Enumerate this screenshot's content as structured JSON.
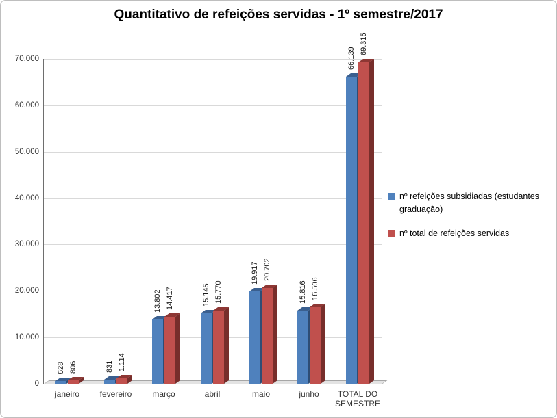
{
  "title": "Quantitativo de refeições servidas - 1º semestre/2017",
  "chart_data": {
    "type": "bar",
    "style": "3d-clustered-column",
    "title": "Quantitativo de refeições servidas - 1º semestre/2017",
    "categories": [
      "janeiro",
      "fevereiro",
      "março",
      "abril",
      "maio",
      "junho",
      "TOTAL DO SEMESTRE"
    ],
    "series": [
      {
        "name": "nº refeições subsidiadas (estudantes graduação)",
        "color": "#4F81BD",
        "color_top": "#3A5F8F",
        "color_side": "#2E4D75",
        "values": [
          628,
          831,
          13802,
          15145,
          19917,
          15816,
          66139
        ],
        "labels": [
          "628",
          "831",
          "13.802",
          "15.145",
          "19.917",
          "15.816",
          "66.139"
        ]
      },
      {
        "name": "nº total de refeições servidas",
        "color": "#C0504D",
        "color_top": "#8E3734",
        "color_side": "#772E2B",
        "values": [
          806,
          1114,
          14417,
          15770,
          20702,
          16506,
          69315
        ],
        "labels": [
          "806",
          "1.114",
          "14.417",
          "15.770",
          "20.702",
          "16.506",
          "69.315"
        ]
      }
    ],
    "ylim": [
      0,
      70000
    ],
    "yticks": [
      0,
      10000,
      20000,
      30000,
      40000,
      50000,
      60000,
      70000
    ],
    "ytick_labels": [
      "0",
      "10.000",
      "20.000",
      "30.000",
      "40.000",
      "50.000",
      "60.000",
      "70.000"
    ],
    "grid": true,
    "legend_position": "right",
    "data_labels": "rotated-90-above-bars"
  }
}
